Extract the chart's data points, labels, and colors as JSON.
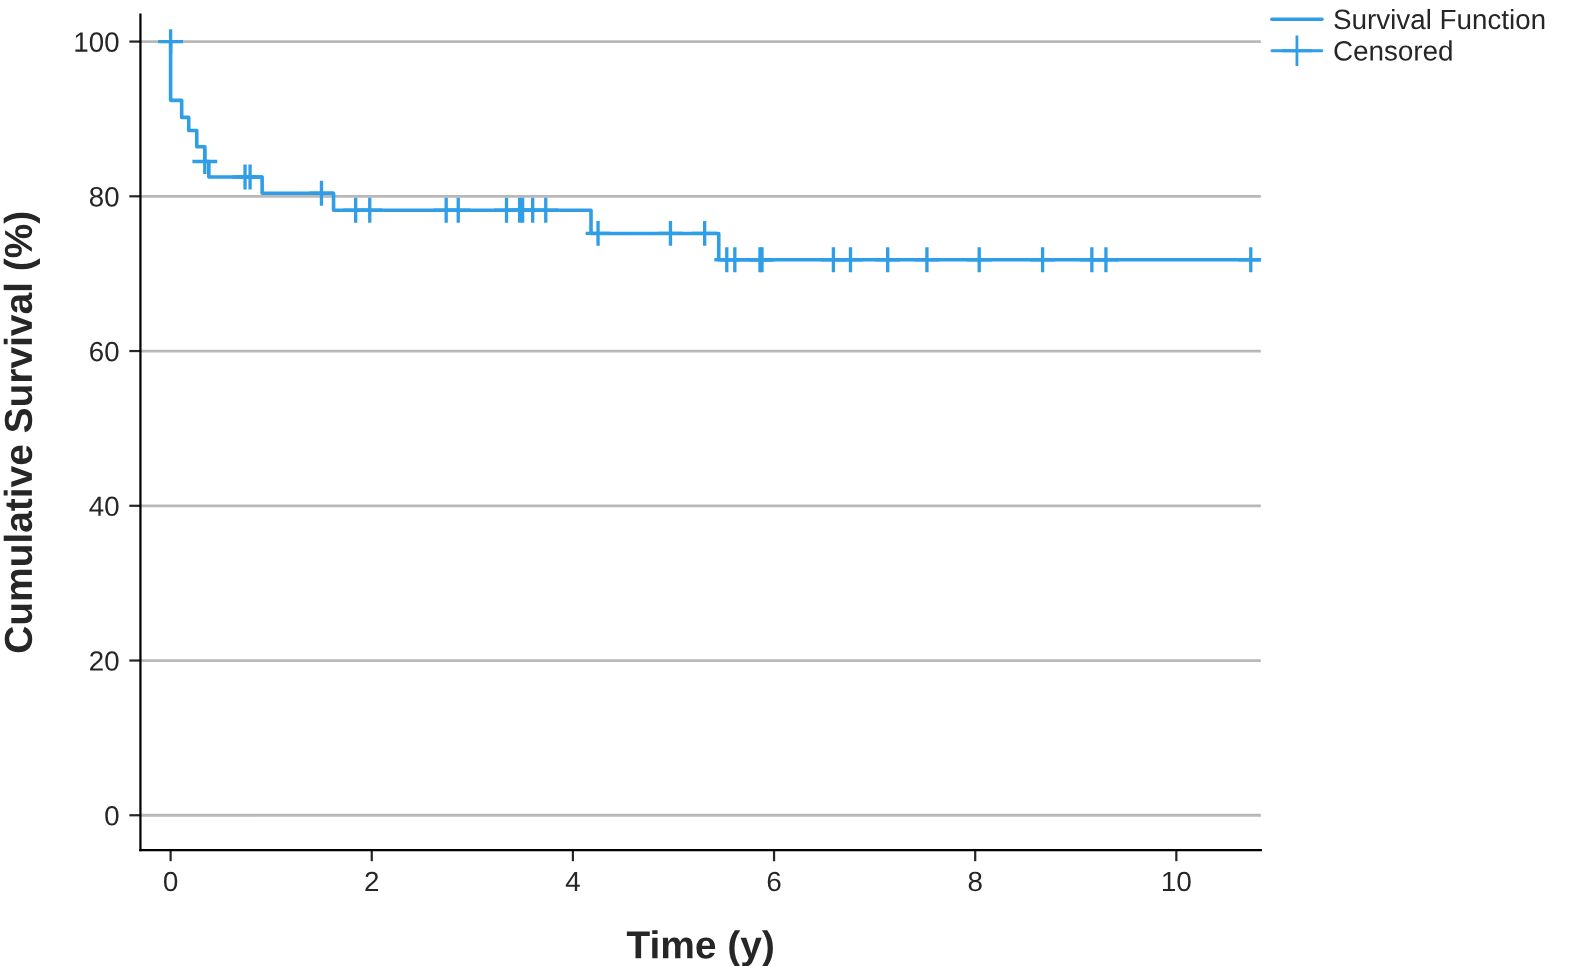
{
  "chart_data": {
    "type": "step",
    "xlabel": "Time (y)",
    "ylabel": "Cumulative Survival (%)",
    "series": [
      {
        "name": "Survival Function",
        "color": "#2f9ee6",
        "x": [
          0,
          0,
          0.11,
          0.18,
          0.26,
          0.34,
          0.38,
          0.91,
          1.62,
          4.18,
          5.45,
          10.84
        ],
        "values": [
          100,
          92.4,
          90.2,
          88.5,
          86.4,
          84.5,
          82.5,
          80.4,
          78.2,
          75.2,
          71.8,
          71.8
        ]
      },
      {
        "name": "Censored",
        "type": "scatter",
        "marker": "cross",
        "color": "#2f9ee6",
        "x": [
          0,
          0.34,
          0.74,
          0.79,
          1.5,
          1.84,
          1.98,
          2.74,
          2.86,
          3.34,
          3.47,
          3.5,
          3.6,
          3.73,
          4.25,
          4.97,
          5.31,
          5.53,
          5.61,
          5.86,
          5.88,
          6.59,
          6.76,
          7.13,
          7.52,
          8.04,
          8.67,
          9.16,
          9.3,
          10.74
        ],
        "values": [
          100,
          84.5,
          82.5,
          82.5,
          80.4,
          78.2,
          78.2,
          78.2,
          78.2,
          78.2,
          78.2,
          78.2,
          78.2,
          78.2,
          75.2,
          75.2,
          75.2,
          71.8,
          71.8,
          71.8,
          71.8,
          71.8,
          71.8,
          71.8,
          71.8,
          71.8,
          71.8,
          71.8,
          71.8,
          71.8
        ]
      }
    ],
    "xlim": [
      -0.3,
      10.84
    ],
    "xticks": [
      0,
      2,
      4,
      6,
      8,
      10
    ],
    "ylim": [
      -4.5,
      103.5
    ],
    "yticks": [
      0,
      20,
      40,
      60,
      80,
      100
    ],
    "grid": "y",
    "legend": "top right"
  }
}
